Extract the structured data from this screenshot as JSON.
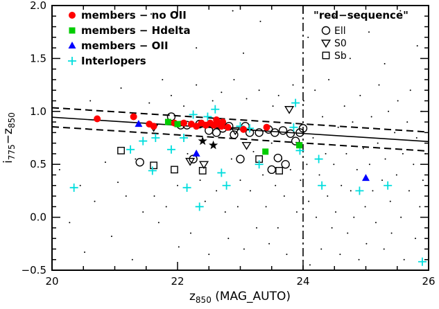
{
  "figure": {
    "background": "#ffffff",
    "axis_color": "#000000"
  },
  "colors": {
    "members_no_oii": "#ff0000",
    "members_hdelta": "#00cc00",
    "members_oii": "#0000ff",
    "interlopers": "#00dddd",
    "red_sequence": "#000000"
  },
  "axes": {
    "x": {
      "label": "z_{850} (MAG_AUTO)",
      "range": [
        20,
        26
      ],
      "tick_values": [
        20,
        22,
        24,
        26
      ],
      "tick_labels": [
        "20",
        "22",
        "24",
        "26"
      ],
      "minor_step": 0.5
    },
    "y": {
      "label": "i_{775}−z_{850}",
      "range": [
        -0.5,
        2.0
      ],
      "tick_values": [
        -0.5,
        0.0,
        0.5,
        1.0,
        1.5,
        2.0
      ],
      "tick_labels": [
        "−0.5",
        "0.0",
        "0.5",
        "1.0",
        "1.5",
        "2.0"
      ],
      "minor_step": 0.1
    }
  },
  "legend_left": {
    "items": [
      {
        "label": "members − no OII",
        "symbol": "filled-circle",
        "color": "#ff0000"
      },
      {
        "label": "members − Hdelta",
        "symbol": "filled-square",
        "color": "#00cc00"
      },
      {
        "label": "members − OII",
        "symbol": "filled-triangle-up",
        "color": "#0000ff"
      },
      {
        "label": "Interlopers",
        "symbol": "plus",
        "color": "#00dddd"
      }
    ]
  },
  "legend_right": {
    "title": "\"red−sequence\"",
    "items": [
      {
        "label": "Ell",
        "symbol": "open-circle",
        "color": "#000000"
      },
      {
        "label": "S0",
        "symbol": "open-triangle-down",
        "color": "#000000"
      },
      {
        "label": "Sb",
        "symbol": "open-square",
        "color": "#000000"
      }
    ]
  },
  "chart_data": {
    "type": "scatter",
    "title": "",
    "xlabel": "z_{850} (MAG_AUTO)",
    "ylabel": "i_{775}−z_{850}",
    "xlim": [
      20,
      26
    ],
    "ylim": [
      -0.5,
      2.0
    ],
    "grid": false,
    "legend_position": "top-left and top-right inside axes",
    "series": [
      {
        "name": "field galaxies",
        "marker": "dot",
        "color": "#000000",
        "points": [
          [
            20.12,
            0.45
          ],
          [
            20.28,
            -0.05
          ],
          [
            20.45,
            0.3
          ],
          [
            20.52,
            -0.33
          ],
          [
            20.61,
            1.1
          ],
          [
            20.68,
            0.15
          ],
          [
            20.85,
            0.52
          ],
          [
            20.95,
            -0.18
          ],
          [
            21.05,
            0.33
          ],
          [
            21.1,
            1.22
          ],
          [
            21.18,
            0.2
          ],
          [
            21.28,
            -0.4
          ],
          [
            21.33,
            0.55
          ],
          [
            21.45,
            0.05
          ],
          [
            21.58,
            1.92
          ],
          [
            22.3,
            1.6
          ],
          [
            22.88,
            1.95
          ],
          [
            23.05,
            1.55
          ],
          [
            23.32,
            1.85
          ],
          [
            24.08,
            1.7
          ],
          [
            24.5,
            1.9
          ],
          [
            24.75,
            1.5
          ],
          [
            25.05,
            1.75
          ],
          [
            25.3,
            1.45
          ],
          [
            25.55,
            1.95
          ],
          [
            25.82,
            1.62
          ],
          [
            21.55,
            1.08
          ],
          [
            21.63,
            0.2
          ],
          [
            21.7,
            -0.05
          ],
          [
            21.76,
            1.3
          ],
          [
            21.82,
            0.1
          ],
          [
            21.9,
            1.15
          ],
          [
            22.0,
            0.3
          ],
          [
            22.02,
            -0.28
          ],
          [
            22.1,
            1.05
          ],
          [
            22.16,
            0.6
          ],
          [
            22.21,
            -0.15
          ],
          [
            22.3,
            1.25
          ],
          [
            22.36,
            0.35
          ],
          [
            22.44,
            0.15
          ],
          [
            22.5,
            -0.35
          ],
          [
            22.56,
            1.1
          ],
          [
            22.62,
            0.25
          ],
          [
            22.7,
            1.18
          ],
          [
            22.76,
            0.05
          ],
          [
            22.81,
            -0.2
          ],
          [
            22.86,
            0.55
          ],
          [
            22.9,
            1.3
          ],
          [
            22.96,
            0.1
          ],
          [
            23.0,
            0.35
          ],
          [
            23.06,
            -0.3
          ],
          [
            23.1,
            1.12
          ],
          [
            23.16,
            0.25
          ],
          [
            23.21,
            0.62
          ],
          [
            23.26,
            -0.1
          ],
          [
            23.3,
            1.2
          ],
          [
            23.36,
            0.4
          ],
          [
            23.41,
            0.1
          ],
          [
            23.46,
            -0.25
          ],
          [
            23.5,
            0.7
          ],
          [
            23.52,
            1.05
          ],
          [
            23.56,
            0.3
          ],
          [
            23.6,
            -0.1
          ],
          [
            23.61,
            1.15
          ],
          [
            23.66,
            0.55
          ],
          [
            23.7,
            0.2
          ],
          [
            23.74,
            -0.35
          ],
          [
            23.8,
            0.45
          ],
          [
            23.84,
            1.25
          ],
          [
            23.9,
            0.05
          ],
          [
            23.96,
            0.35
          ],
          [
            24.0,
            -0.2
          ],
          [
            24.01,
            1.1
          ],
          [
            24.06,
            0.5
          ],
          [
            24.09,
            0.15
          ],
          [
            24.11,
            -0.45
          ],
          [
            24.16,
            0.75
          ],
          [
            24.19,
            1.2
          ],
          [
            24.21,
            0.0
          ],
          [
            24.26,
            0.4
          ],
          [
            24.29,
            -0.3
          ],
          [
            24.31,
            0.95
          ],
          [
            24.36,
            0.6
          ],
          [
            24.39,
            0.2
          ],
          [
            24.41,
            1.3
          ],
          [
            24.46,
            -0.1
          ],
          [
            24.49,
            0.5
          ],
          [
            24.52,
            0.05
          ],
          [
            24.56,
            0.85
          ],
          [
            24.59,
            -0.35
          ],
          [
            24.61,
            0.3
          ],
          [
            24.66,
            1.05
          ],
          [
            24.69,
            0.6
          ],
          [
            24.71,
            -0.15
          ],
          [
            24.76,
            0.25
          ],
          [
            24.79,
            0.9
          ],
          [
            24.81,
            0.0
          ],
          [
            24.86,
            0.45
          ],
          [
            24.89,
            -0.4
          ],
          [
            24.91,
            1.15
          ],
          [
            24.96,
            0.65
          ],
          [
            24.99,
            0.1
          ],
          [
            25.01,
            -0.25
          ],
          [
            25.06,
            0.5
          ],
          [
            25.09,
            0.95
          ],
          [
            25.11,
            0.25
          ],
          [
            25.16,
            -0.05
          ],
          [
            25.19,
            0.7
          ],
          [
            25.21,
            1.25
          ],
          [
            25.26,
            0.35
          ],
          [
            25.29,
            -0.3
          ],
          [
            25.31,
            0.55
          ],
          [
            25.36,
            1.0
          ],
          [
            25.39,
            0.15
          ],
          [
            25.41,
            -0.15
          ],
          [
            25.46,
            0.8
          ],
          [
            25.49,
            0.4
          ],
          [
            25.51,
            1.1
          ],
          [
            25.56,
            0.0
          ],
          [
            25.59,
            0.6
          ],
          [
            25.61,
            -0.4
          ],
          [
            25.66,
            0.9
          ],
          [
            25.69,
            0.25
          ],
          [
            25.71,
            1.2
          ],
          [
            25.76,
            0.5
          ],
          [
            25.79,
            -0.2
          ],
          [
            25.81,
            0.75
          ],
          [
            25.86,
            0.1
          ],
          [
            25.89,
            1.0
          ],
          [
            25.91,
            0.35
          ],
          [
            25.95,
            0.6
          ]
        ]
      },
      {
        "name": "red-sequence Ell",
        "marker": "open-circle",
        "color": "#000000",
        "points": [
          [
            21.4,
            0.52
          ],
          [
            21.9,
            0.95
          ],
          [
            22.05,
            0.87
          ],
          [
            22.15,
            0.87
          ],
          [
            22.25,
            0.55
          ],
          [
            22.35,
            0.88
          ],
          [
            22.5,
            0.82
          ],
          [
            22.62,
            0.8
          ],
          [
            22.72,
            0.84
          ],
          [
            22.82,
            0.86
          ],
          [
            22.9,
            0.78
          ],
          [
            23.0,
            0.55
          ],
          [
            23.08,
            0.86
          ],
          [
            23.15,
            0.8
          ],
          [
            23.3,
            0.8
          ],
          [
            23.45,
            0.83
          ],
          [
            23.5,
            0.45
          ],
          [
            23.55,
            0.8
          ],
          [
            23.6,
            0.56
          ],
          [
            23.68,
            0.82
          ],
          [
            23.72,
            0.5
          ],
          [
            23.8,
            0.79
          ],
          [
            23.88,
            0.72
          ],
          [
            23.95,
            0.8
          ],
          [
            24.0,
            0.84
          ]
        ]
      },
      {
        "name": "red-sequence S0",
        "marker": "open-triangle-down",
        "color": "#000000",
        "points": [
          [
            21.62,
            0.85
          ],
          [
            22.2,
            0.53
          ],
          [
            22.42,
            0.5
          ],
          [
            22.92,
            0.82
          ],
          [
            23.1,
            0.68
          ],
          [
            23.78,
            1.02
          ]
        ]
      },
      {
        "name": "red-sequence Sb",
        "marker": "open-square",
        "color": "#000000",
        "points": [
          [
            21.1,
            0.63
          ],
          [
            21.62,
            0.49
          ],
          [
            21.95,
            0.45
          ],
          [
            22.4,
            0.44
          ],
          [
            23.3,
            0.55
          ],
          [
            23.62,
            0.44
          ]
        ]
      },
      {
        "name": "Interlopers",
        "marker": "plus",
        "color": "#00dddd",
        "points": [
          [
            20.35,
            0.28
          ],
          [
            21.25,
            0.64
          ],
          [
            21.45,
            0.72
          ],
          [
            21.6,
            0.44
          ],
          [
            21.65,
            0.75
          ],
          [
            21.9,
            0.64
          ],
          [
            22.1,
            0.75
          ],
          [
            22.15,
            0.28
          ],
          [
            22.25,
            0.97
          ],
          [
            22.35,
            0.1
          ],
          [
            22.48,
            0.95
          ],
          [
            22.6,
            1.02
          ],
          [
            22.7,
            0.42
          ],
          [
            22.78,
            0.3
          ],
          [
            23.0,
            0.86
          ],
          [
            23.15,
            0.84
          ],
          [
            23.3,
            0.5
          ],
          [
            23.85,
            0.85
          ],
          [
            23.88,
            1.08
          ],
          [
            23.95,
            0.63
          ],
          [
            24.25,
            0.55
          ],
          [
            24.3,
            0.3
          ],
          [
            24.9,
            0.25
          ],
          [
            25.35,
            0.3
          ],
          [
            25.9,
            -0.42
          ]
        ]
      },
      {
        "name": "members − no OII",
        "marker": "filled-circle",
        "color": "#ff0000",
        "points": [
          [
            20.72,
            0.93
          ],
          [
            21.3,
            0.95
          ],
          [
            21.55,
            0.88
          ],
          [
            21.62,
            0.86
          ],
          [
            21.95,
            0.89
          ],
          [
            22.1,
            0.89
          ],
          [
            22.22,
            0.88
          ],
          [
            22.3,
            0.86
          ],
          [
            22.38,
            0.89
          ],
          [
            22.45,
            0.87
          ],
          [
            22.52,
            0.89
          ],
          [
            22.58,
            0.87
          ],
          [
            22.62,
            0.92
          ],
          [
            22.65,
            0.88
          ],
          [
            22.7,
            0.86
          ],
          [
            22.72,
            0.9
          ],
          [
            22.8,
            0.85
          ],
          [
            23.05,
            0.83
          ],
          [
            23.42,
            0.85
          ]
        ]
      },
      {
        "name": "members − Hdelta",
        "marker": "filled-square",
        "color": "#00cc00",
        "points": [
          [
            21.85,
            0.9
          ],
          [
            22.0,
            0.88
          ],
          [
            23.4,
            0.62
          ],
          [
            23.94,
            0.68
          ]
        ]
      },
      {
        "name": "members − OII",
        "marker": "filled-triangle-up",
        "color": "#0000ff",
        "points": [
          [
            21.38,
            0.88
          ],
          [
            22.3,
            0.6
          ],
          [
            25.0,
            0.37
          ]
        ]
      },
      {
        "name": "members uncertain",
        "marker": "filled-star",
        "color": "#000000",
        "points": [
          [
            22.4,
            0.72
          ],
          [
            22.57,
            0.68
          ]
        ]
      }
    ],
    "lines": [
      {
        "name": "red-sequence fit",
        "style": "solid",
        "x": [
          20,
          26
        ],
        "y": [
          0.945,
          0.715
        ]
      },
      {
        "name": "upper envelope",
        "style": "dashed",
        "x": [
          20,
          26
        ],
        "y": [
          1.035,
          0.805
        ]
      },
      {
        "name": "lower envelope",
        "style": "dashed",
        "x": [
          20,
          26
        ],
        "y": [
          0.855,
          0.625
        ]
      },
      {
        "name": "magnitude limit",
        "style": "dash-dot",
        "vertical_x": 24
      }
    ]
  }
}
